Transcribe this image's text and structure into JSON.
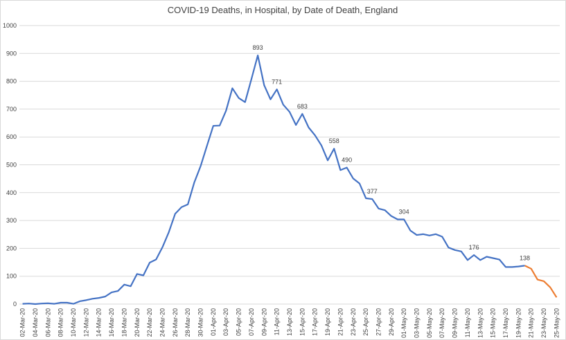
{
  "chart_data": {
    "type": "line",
    "title": "COVID-19 Deaths, in Hospital, by Date of Death, England",
    "categories": [
      "02-Mar-20",
      null,
      "04-Mar-20",
      null,
      "06-Mar-20",
      null,
      "08-Mar-20",
      null,
      "10-Mar-20",
      null,
      "12-Mar-20",
      null,
      "14-Mar-20",
      null,
      "16-Mar-20",
      null,
      "18-Mar-20",
      null,
      "20-Mar-20",
      null,
      "22-Mar-20",
      null,
      "24-Mar-20",
      null,
      "26-Mar-20",
      null,
      "28-Mar-20",
      null,
      "30-Mar-20",
      null,
      "01-Apr-20",
      null,
      "03-Apr-20",
      null,
      "05-Apr-20",
      null,
      "07-Apr-20",
      null,
      "09-Apr-20",
      null,
      "11-Apr-20",
      null,
      "13-Apr-20",
      null,
      "15-Apr-20",
      null,
      "17-Apr-20",
      null,
      "19-Apr-20",
      null,
      "21-Apr-20",
      null,
      "23-Apr-20",
      null,
      "25-Apr-20",
      null,
      "27-Apr-20",
      null,
      "29-Apr-20",
      null,
      "01-May-20",
      null,
      "03-May-20",
      null,
      "05-May-20",
      null,
      "07-May-20",
      null,
      "09-May-20",
      null,
      "11-May-20",
      null,
      "13-May-20",
      null,
      "15-May-20",
      null,
      "17-May-20",
      null,
      "19-May-20",
      null,
      "21-May-20",
      null,
      "23-May-20",
      null,
      "25-May-20"
    ],
    "series": [
      {
        "color": "#4472c4",
        "values": [
          1,
          2,
          0,
          2,
          3,
          1,
          5,
          5,
          1,
          10,
          14,
          19,
          22,
          27,
          42,
          47,
          70,
          64,
          108,
          103,
          149,
          160,
          204,
          258,
          324,
          348,
          358,
          436,
          495,
          568,
          640,
          641,
          694,
          775,
          740,
          725,
          808,
          893,
          786,
          735,
          771,
          716,
          690,
          643,
          683,
          634,
          606,
          570,
          516,
          558,
          481,
          490,
          451,
          433,
          380,
          377,
          343,
          337,
          316,
          304,
          304,
          264,
          248,
          251,
          246,
          251,
          242,
          203,
          194,
          189,
          158,
          176,
          158,
          170,
          165,
          160,
          133,
          133,
          135,
          138,
          null,
          null,
          null,
          null,
          null
        ],
        "value_labels": [
          null,
          null,
          null,
          null,
          null,
          null,
          null,
          null,
          null,
          null,
          null,
          null,
          null,
          null,
          null,
          null,
          null,
          null,
          null,
          null,
          null,
          null,
          null,
          null,
          null,
          null,
          null,
          null,
          null,
          null,
          null,
          null,
          null,
          null,
          null,
          null,
          null,
          "893",
          null,
          null,
          "771",
          null,
          null,
          null,
          "683",
          null,
          null,
          null,
          null,
          "558",
          null,
          "490",
          null,
          null,
          null,
          "377",
          null,
          null,
          null,
          null,
          "304",
          null,
          null,
          null,
          null,
          null,
          null,
          null,
          null,
          null,
          null,
          "176",
          null,
          null,
          null,
          null,
          null,
          null,
          null,
          "138",
          null,
          null,
          null,
          null,
          null
        ]
      },
      {
        "color": "#ed7d31",
        "values": [
          null,
          null,
          null,
          null,
          null,
          null,
          null,
          null,
          null,
          null,
          null,
          null,
          null,
          null,
          null,
          null,
          null,
          null,
          null,
          null,
          null,
          null,
          null,
          null,
          null,
          null,
          null,
          null,
          null,
          null,
          null,
          null,
          null,
          null,
          null,
          null,
          null,
          null,
          null,
          null,
          null,
          null,
          null,
          null,
          null,
          null,
          null,
          null,
          null,
          null,
          null,
          null,
          null,
          null,
          null,
          null,
          null,
          null,
          null,
          null,
          null,
          null,
          null,
          null,
          null,
          null,
          null,
          null,
          null,
          null,
          null,
          null,
          null,
          null,
          null,
          null,
          null,
          null,
          null,
          138,
          127,
          88,
          82,
          60,
          24
        ]
      }
    ],
    "ylim": [
      0,
      1000
    ],
    "yticks": [
      0,
      100,
      200,
      300,
      400,
      500,
      600,
      700,
      800,
      900,
      1000
    ],
    "grid": true
  }
}
